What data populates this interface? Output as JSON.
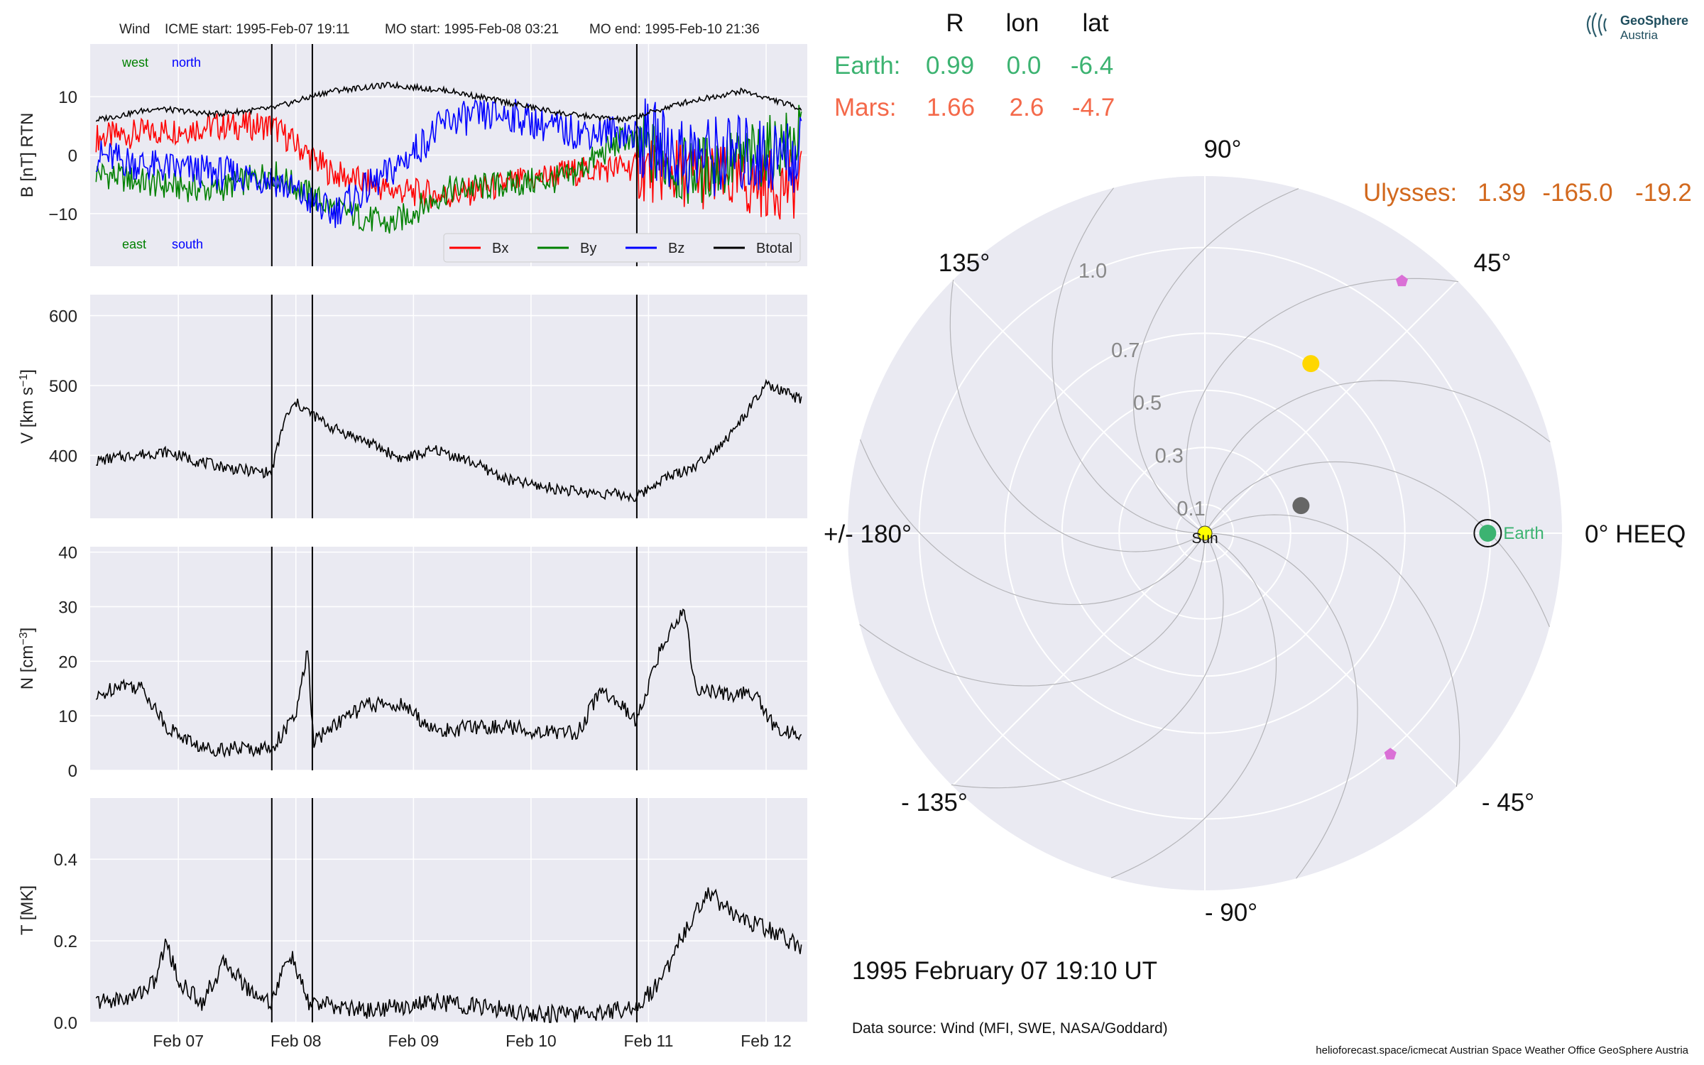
{
  "header": {
    "spacecraft": "Wind",
    "icme_start": "ICME start: 1995-Feb-07 19:11",
    "mo_start": "MO start: 1995-Feb-08 03:21",
    "mo_end": "MO end: 1995-Feb-10 21:36"
  },
  "logo": {
    "line1": "GeoSphere",
    "line2": "Austria"
  },
  "positions_table": {
    "headers": [
      "R",
      "lon",
      "lat"
    ],
    "rows": [
      {
        "name": "Earth:",
        "R": "0.99",
        "lon": "0.0",
        "lat": "-6.4",
        "color": "#3cb371"
      },
      {
        "name": "Mars:",
        "R": "1.66",
        "lon": "2.6",
        "lat": "-4.7",
        "color": "#f4694a"
      }
    ],
    "ulysses": {
      "name": "Ulysses:",
      "R": "1.39",
      "lon": "-165.0",
      "lat": "-19.2",
      "color": "#d2691e"
    }
  },
  "date_label": "1995 February 07  19:10 UT",
  "data_source": "Data source: Wind (MFI, SWE, NASA/Goddard)",
  "credits": "helioforecast.space/icmecat   Austrian Space Weather Office   GeoSphere Austria",
  "colors": {
    "panel_bg": "#eaeaf2",
    "grid": "#ffffff",
    "bx": "#ff0000",
    "by": "#008000",
    "bz": "#0000ff",
    "btotal": "#000000",
    "earth": "#3cb371",
    "sun": "#ffff00",
    "ulysses_marker": "#ffd700",
    "psp_marker": "#666666",
    "pentagon": "#da70d6"
  },
  "chart_data": [
    {
      "type": "line",
      "ylabel": "B [nT] RTN",
      "ylim": [
        -19,
        19
      ],
      "yticks": [
        "10",
        "0",
        "−10"
      ],
      "ytick_values": [
        10,
        0,
        -10
      ],
      "x_range_days": [
        6.25,
        12.35
      ],
      "xtick_labels": [
        "Feb 07",
        "Feb 08",
        "Feb 09",
        "Feb 10",
        "Feb 11",
        "Feb 12"
      ],
      "xtick_values": [
        7,
        8,
        9,
        10,
        11,
        12
      ],
      "event_lines": [
        7.795,
        8.14,
        10.9
      ],
      "corner_labels": {
        "west": "west",
        "north": "north",
        "east": "east",
        "south": "south"
      },
      "legend": [
        "Bx",
        "By",
        "Bz",
        "Btotal"
      ],
      "series": [
        {
          "name": "Bx",
          "x": [
            6.3,
            6.8,
            7.3,
            7.8,
            8.3,
            8.8,
            9.3,
            9.8,
            10.3,
            10.8,
            11.3,
            11.8,
            12.3
          ],
          "values": [
            3,
            4,
            5,
            5,
            -3,
            -6,
            -7,
            -5,
            -3,
            -2,
            -3,
            -5,
            -5
          ]
        },
        {
          "name": "By",
          "x": [
            6.3,
            6.8,
            7.3,
            7.8,
            8.3,
            8.8,
            9.3,
            9.8,
            10.3,
            10.8,
            11.3,
            11.8,
            12.3
          ],
          "values": [
            -3,
            -5,
            -6,
            -3,
            -9,
            -12,
            -6,
            -5,
            -4,
            3,
            -3,
            -1,
            3
          ]
        },
        {
          "name": "Bz",
          "x": [
            6.3,
            6.8,
            7.3,
            7.8,
            8.3,
            8.8,
            9.3,
            9.8,
            10.3,
            10.8,
            11.3,
            11.8,
            12.3
          ],
          "values": [
            0,
            -2,
            -3,
            -4,
            -10,
            -3,
            6,
            7,
            4,
            4,
            0,
            0,
            0
          ]
        },
        {
          "name": "Btotal",
          "x": [
            6.3,
            6.8,
            7.3,
            7.8,
            8.3,
            8.8,
            9.3,
            9.8,
            10.3,
            10.8,
            11.3,
            11.8,
            12.3
          ],
          "values": [
            6,
            8,
            7,
            8,
            11,
            12,
            11,
            9,
            7,
            6,
            9,
            11,
            8
          ]
        }
      ]
    },
    {
      "type": "line",
      "ylabel": "V [km s^-1]",
      "ylim": [
        310,
        630
      ],
      "yticks": [
        "600",
        "500",
        "400"
      ],
      "ytick_values": [
        600,
        500,
        400
      ],
      "x_range_days": [
        6.25,
        12.35
      ],
      "xtick_values": [
        7,
        8,
        9,
        10,
        11,
        12
      ],
      "event_lines": [
        7.795,
        8.14,
        10.9
      ],
      "series": [
        {
          "name": "V",
          "x": [
            6.3,
            6.6,
            6.9,
            7.2,
            7.5,
            7.79,
            7.9,
            8.0,
            8.3,
            8.6,
            8.9,
            9.2,
            9.5,
            9.8,
            10.1,
            10.4,
            10.7,
            10.9,
            11.1,
            11.4,
            11.7,
            12.0,
            12.3
          ],
          "values": [
            392,
            400,
            405,
            390,
            380,
            375,
            450,
            475,
            440,
            420,
            395,
            408,
            390,
            365,
            355,
            348,
            345,
            340,
            365,
            385,
            430,
            500,
            480
          ]
        }
      ]
    },
    {
      "type": "line",
      "ylabel": "N [cm^-3]",
      "ylim": [
        0,
        41
      ],
      "yticks": [
        "40",
        "30",
        "20",
        "10",
        "0"
      ],
      "ytick_values": [
        40,
        30,
        20,
        10,
        0
      ],
      "x_range_days": [
        6.25,
        12.35
      ],
      "xtick_values": [
        7,
        8,
        9,
        10,
        11,
        12
      ],
      "event_lines": [
        7.795,
        8.14,
        10.9
      ],
      "series": [
        {
          "name": "N",
          "x": [
            6.3,
            6.5,
            6.7,
            6.9,
            7.2,
            7.5,
            7.79,
            8.0,
            8.1,
            8.15,
            8.3,
            8.6,
            8.9,
            9.2,
            9.5,
            9.8,
            10.1,
            10.4,
            10.6,
            10.9,
            11.1,
            11.3,
            11.4,
            11.6,
            11.9,
            12.1,
            12.3
          ],
          "values": [
            13,
            16,
            15,
            8,
            4,
            4,
            4,
            10,
            22,
            5,
            8,
            12,
            12,
            7,
            8,
            8,
            7,
            7,
            15,
            9,
            22,
            30,
            15,
            14,
            14,
            7,
            7
          ]
        }
      ]
    },
    {
      "type": "line",
      "ylabel": "T [MK]",
      "ylim": [
        0,
        0.55
      ],
      "yticks": [
        "0.4",
        "0.2",
        "0.0"
      ],
      "ytick_values": [
        0.4,
        0.2,
        0.0
      ],
      "x_range_days": [
        6.25,
        12.35
      ],
      "xtick_values": [
        7,
        8,
        9,
        10,
        11,
        12
      ],
      "event_lines": [
        7.795,
        8.14,
        10.9
      ],
      "series": [
        {
          "name": "T",
          "x": [
            6.3,
            6.6,
            6.8,
            6.9,
            7.0,
            7.2,
            7.4,
            7.6,
            7.79,
            7.95,
            8.1,
            8.3,
            8.6,
            8.9,
            9.2,
            9.5,
            9.8,
            10.1,
            10.4,
            10.7,
            10.9,
            11.1,
            11.3,
            11.5,
            11.8,
            12.1,
            12.3
          ],
          "values": [
            0.05,
            0.06,
            0.1,
            0.2,
            0.1,
            0.05,
            0.15,
            0.08,
            0.05,
            0.17,
            0.05,
            0.04,
            0.03,
            0.04,
            0.05,
            0.04,
            0.03,
            0.02,
            0.02,
            0.03,
            0.04,
            0.1,
            0.22,
            0.32,
            0.25,
            0.22,
            0.18
          ]
        }
      ]
    },
    {
      "type": "scatter",
      "projection": "polar",
      "angle_labels": [
        "90°",
        "45°",
        "0° HEEQ",
        "- 45°",
        "- 90°",
        "- 135°",
        "+/- 180°",
        "135°"
      ],
      "radial_labels": [
        "1.0",
        "0.7",
        "0.5",
        "0.3",
        "0.1"
      ],
      "radial_values": [
        1.0,
        0.7,
        0.5,
        0.3,
        0.1
      ],
      "r_max": 1.25,
      "points": [
        {
          "label": "Sun",
          "r": 0,
          "lon": 0,
          "color": "#ffff00"
        },
        {
          "label": "Earth",
          "r": 0.99,
          "lon": 0,
          "color": "#3cb371"
        },
        {
          "r": 0.7,
          "lon": 58,
          "color": "#ffd700"
        },
        {
          "r": 0.35,
          "lon": 16,
          "color": "#666666"
        },
        {
          "r": 1.12,
          "lon": 52,
          "color": "#da70d6"
        },
        {
          "r": 1.01,
          "lon": -50,
          "color": "#da70d6"
        }
      ]
    }
  ]
}
